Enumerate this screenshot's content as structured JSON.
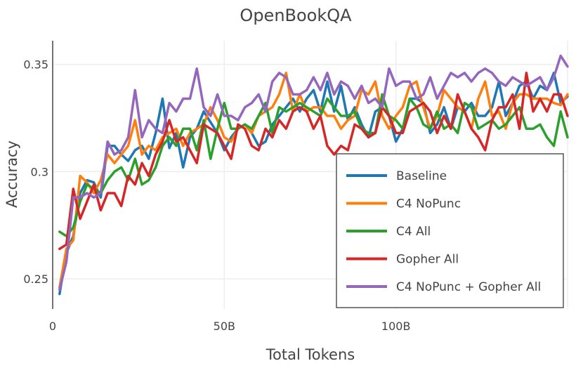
{
  "chart_data": {
    "type": "line",
    "title": "OpenBookQA",
    "xlabel": "Total Tokens",
    "ylabel": "Accuracy",
    "xlim": [
      0,
      150
    ],
    "ylim": [
      0.236,
      0.361
    ],
    "x_ticks": [
      {
        "value": 0,
        "label": "0"
      },
      {
        "value": 50,
        "label": "50B"
      },
      {
        "value": 100,
        "label": "100B"
      }
    ],
    "y_ticks": [
      {
        "value": 0.25,
        "label": "0.25"
      },
      {
        "value": 0.3,
        "label": "0.3"
      },
      {
        "value": 0.35,
        "label": "0.35"
      }
    ],
    "grid": true,
    "legend_position": "bottom-right",
    "x": [
      2,
      4,
      6,
      8,
      10,
      12,
      14,
      16,
      18,
      20,
      22,
      24,
      26,
      28,
      30,
      32,
      34,
      36,
      38,
      40,
      42,
      44,
      46,
      48,
      50,
      52,
      54,
      56,
      58,
      60,
      62,
      64,
      66,
      68,
      70,
      72,
      74,
      76,
      78,
      80,
      82,
      84,
      86,
      88,
      90,
      92,
      94,
      96,
      98,
      100,
      102,
      104,
      106,
      108,
      110,
      112,
      114,
      116,
      118,
      120,
      122,
      124,
      126,
      128,
      130,
      132,
      134,
      136,
      138,
      140,
      142,
      144,
      146,
      148,
      150
    ],
    "series": [
      {
        "name": "Baseline",
        "color": "#1f77b4",
        "values": [
          0.243,
          0.262,
          0.27,
          0.29,
          0.296,
          0.295,
          0.288,
          0.312,
          0.312,
          0.308,
          0.305,
          0.31,
          0.312,
          0.306,
          0.318,
          0.334,
          0.311,
          0.318,
          0.302,
          0.316,
          0.32,
          0.328,
          0.323,
          0.318,
          0.31,
          0.316,
          0.32,
          0.322,
          0.318,
          0.312,
          0.314,
          0.322,
          0.326,
          0.33,
          0.334,
          0.328,
          0.334,
          0.338,
          0.328,
          0.342,
          0.328,
          0.34,
          0.324,
          0.33,
          0.322,
          0.316,
          0.328,
          0.33,
          0.326,
          0.314,
          0.32,
          0.334,
          0.334,
          0.332,
          0.318,
          0.322,
          0.33,
          0.32,
          0.33,
          0.328,
          0.332,
          0.326,
          0.326,
          0.33,
          0.342,
          0.326,
          0.332,
          0.34,
          0.342,
          0.334,
          0.34,
          0.338,
          0.346,
          0.332,
          0.335
        ]
      },
      {
        "name": "C4 NoPunc",
        "color": "#ff7f0e",
        "values": [
          0.246,
          0.264,
          0.268,
          0.298,
          0.295,
          0.29,
          0.296,
          0.308,
          0.304,
          0.308,
          0.312,
          0.324,
          0.308,
          0.312,
          0.31,
          0.316,
          0.318,
          0.32,
          0.312,
          0.318,
          0.32,
          0.322,
          0.33,
          0.324,
          0.316,
          0.314,
          0.32,
          0.322,
          0.318,
          0.326,
          0.328,
          0.33,
          0.336,
          0.346,
          0.328,
          0.336,
          0.328,
          0.33,
          0.33,
          0.326,
          0.326,
          0.32,
          0.324,
          0.326,
          0.338,
          0.336,
          0.342,
          0.326,
          0.32,
          0.326,
          0.33,
          0.34,
          0.342,
          0.33,
          0.32,
          0.326,
          0.338,
          0.334,
          0.33,
          0.328,
          0.32,
          0.334,
          0.342,
          0.326,
          0.328,
          0.32,
          0.332,
          0.336,
          0.336,
          0.334,
          0.334,
          0.334,
          0.332,
          0.331,
          0.336
        ]
      },
      {
        "name": "C4 All",
        "color": "#2ca02c",
        "values": [
          0.272,
          0.27,
          0.274,
          0.286,
          0.294,
          0.292,
          0.29,
          0.296,
          0.3,
          0.302,
          0.296,
          0.306,
          0.294,
          0.296,
          0.302,
          0.312,
          0.316,
          0.312,
          0.32,
          0.32,
          0.31,
          0.324,
          0.306,
          0.32,
          0.332,
          0.32,
          0.32,
          0.322,
          0.32,
          0.326,
          0.332,
          0.318,
          0.33,
          0.328,
          0.33,
          0.332,
          0.33,
          0.328,
          0.326,
          0.334,
          0.33,
          0.326,
          0.326,
          0.328,
          0.32,
          0.318,
          0.318,
          0.336,
          0.326,
          0.324,
          0.32,
          0.334,
          0.33,
          0.322,
          0.32,
          0.328,
          0.32,
          0.322,
          0.318,
          0.332,
          0.33,
          0.32,
          0.322,
          0.324,
          0.32,
          0.322,
          0.326,
          0.33,
          0.32,
          0.32,
          0.322,
          0.316,
          0.312,
          0.328,
          0.316
        ]
      },
      {
        "name": "Gopher All",
        "color": "#d62728",
        "values": [
          0.264,
          0.266,
          0.292,
          0.278,
          0.286,
          0.294,
          0.282,
          0.29,
          0.29,
          0.284,
          0.298,
          0.294,
          0.304,
          0.298,
          0.308,
          0.314,
          0.324,
          0.314,
          0.316,
          0.31,
          0.304,
          0.322,
          0.32,
          0.318,
          0.312,
          0.306,
          0.322,
          0.32,
          0.312,
          0.31,
          0.32,
          0.316,
          0.324,
          0.32,
          0.328,
          0.33,
          0.328,
          0.32,
          0.326,
          0.312,
          0.308,
          0.312,
          0.31,
          0.322,
          0.32,
          0.316,
          0.318,
          0.33,
          0.326,
          0.318,
          0.318,
          0.328,
          0.33,
          0.332,
          0.328,
          0.318,
          0.326,
          0.32,
          0.336,
          0.328,
          0.32,
          0.316,
          0.31,
          0.324,
          0.33,
          0.33,
          0.336,
          0.32,
          0.346,
          0.328,
          0.334,
          0.328,
          0.336,
          0.336,
          0.326
        ]
      },
      {
        "name": "C4 NoPunc + Gopher All",
        "color": "#9467bd",
        "values": [
          0.245,
          0.258,
          0.288,
          0.288,
          0.29,
          0.288,
          0.29,
          0.314,
          0.308,
          0.31,
          0.316,
          0.338,
          0.316,
          0.324,
          0.32,
          0.318,
          0.332,
          0.328,
          0.334,
          0.334,
          0.348,
          0.33,
          0.326,
          0.336,
          0.326,
          0.326,
          0.324,
          0.33,
          0.332,
          0.336,
          0.328,
          0.342,
          0.346,
          0.344,
          0.336,
          0.336,
          0.338,
          0.344,
          0.338,
          0.346,
          0.336,
          0.342,
          0.34,
          0.334,
          0.34,
          0.332,
          0.334,
          0.33,
          0.348,
          0.34,
          0.342,
          0.342,
          0.334,
          0.336,
          0.344,
          0.334,
          0.34,
          0.346,
          0.344,
          0.346,
          0.342,
          0.346,
          0.348,
          0.346,
          0.342,
          0.34,
          0.344,
          0.342,
          0.34,
          0.342,
          0.344,
          0.338,
          0.344,
          0.354,
          0.349
        ]
      }
    ]
  }
}
